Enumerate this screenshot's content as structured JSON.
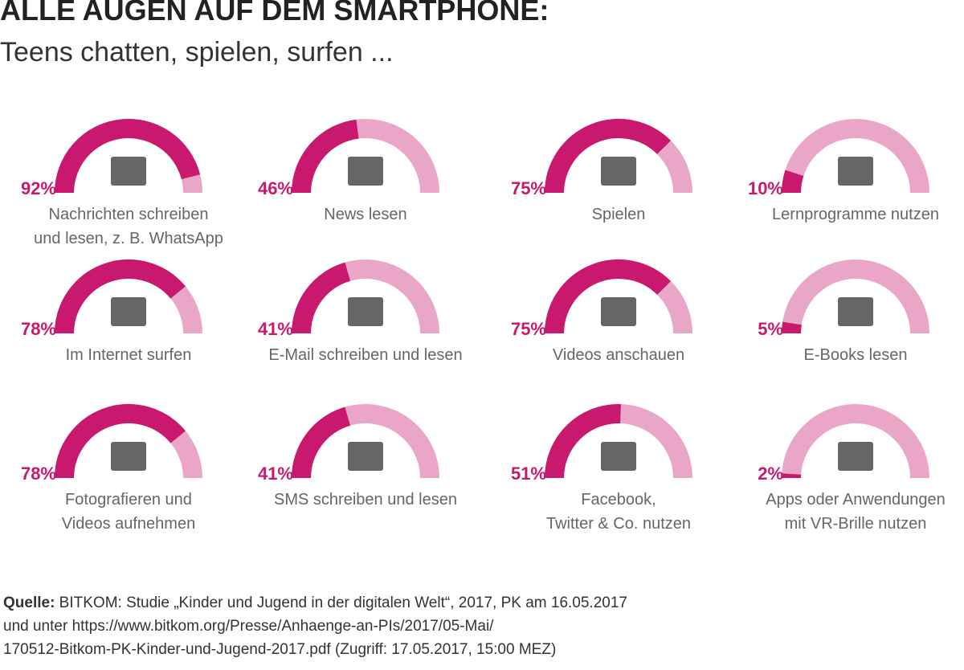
{
  "chart_data": {
    "type": "gauge",
    "title": "ALLE AUGEN AUF DEM SMARTPHONE:",
    "subtitle": "Teens chatten, spielen, surfen ...",
    "categories": [
      "Nachrichten schreiben\nund lesen, z. B. WhatsApp",
      "News lesen",
      "Spielen",
      "Lernprogramme nutzen",
      "Im Internet surfen",
      "E-Mail schreiben und lesen",
      "Videos anschauen",
      "E-Books lesen",
      "Fotografieren und\nVideos aufnehmen",
      "SMS schreiben und lesen",
      "Facebook,\nTwitter & Co. nutzen",
      "Apps oder Anwendungen\nmit VR-Brille nutzen"
    ],
    "values": [
      92,
      46,
      75,
      10,
      78,
      41,
      75,
      5,
      78,
      41,
      51,
      2
    ],
    "value_labels": [
      "92%",
      "46%",
      "75%",
      "10%",
      "78%",
      "41%",
      "75%",
      "5%",
      "78%",
      "41%",
      "51%",
      "2%"
    ],
    "ylim": [
      0,
      100
    ],
    "color": "#c8196e",
    "track_color": "#eaa6c6",
    "source_label": "Quelle:",
    "source_text": " BITKOM: Studie „Kinder und Jugend in der digitalen Welt“, 2017, PK am 16.05.2017\nund unter https://www.bitkom.org/Presse/Anhaenge-an-PIs/2017/05-Mai/\n170512-Bitkom-PK-Kinder-und-Jugend-2017.pdf (Zugriff: 17.05.2017, 15:00 MEZ)"
  }
}
